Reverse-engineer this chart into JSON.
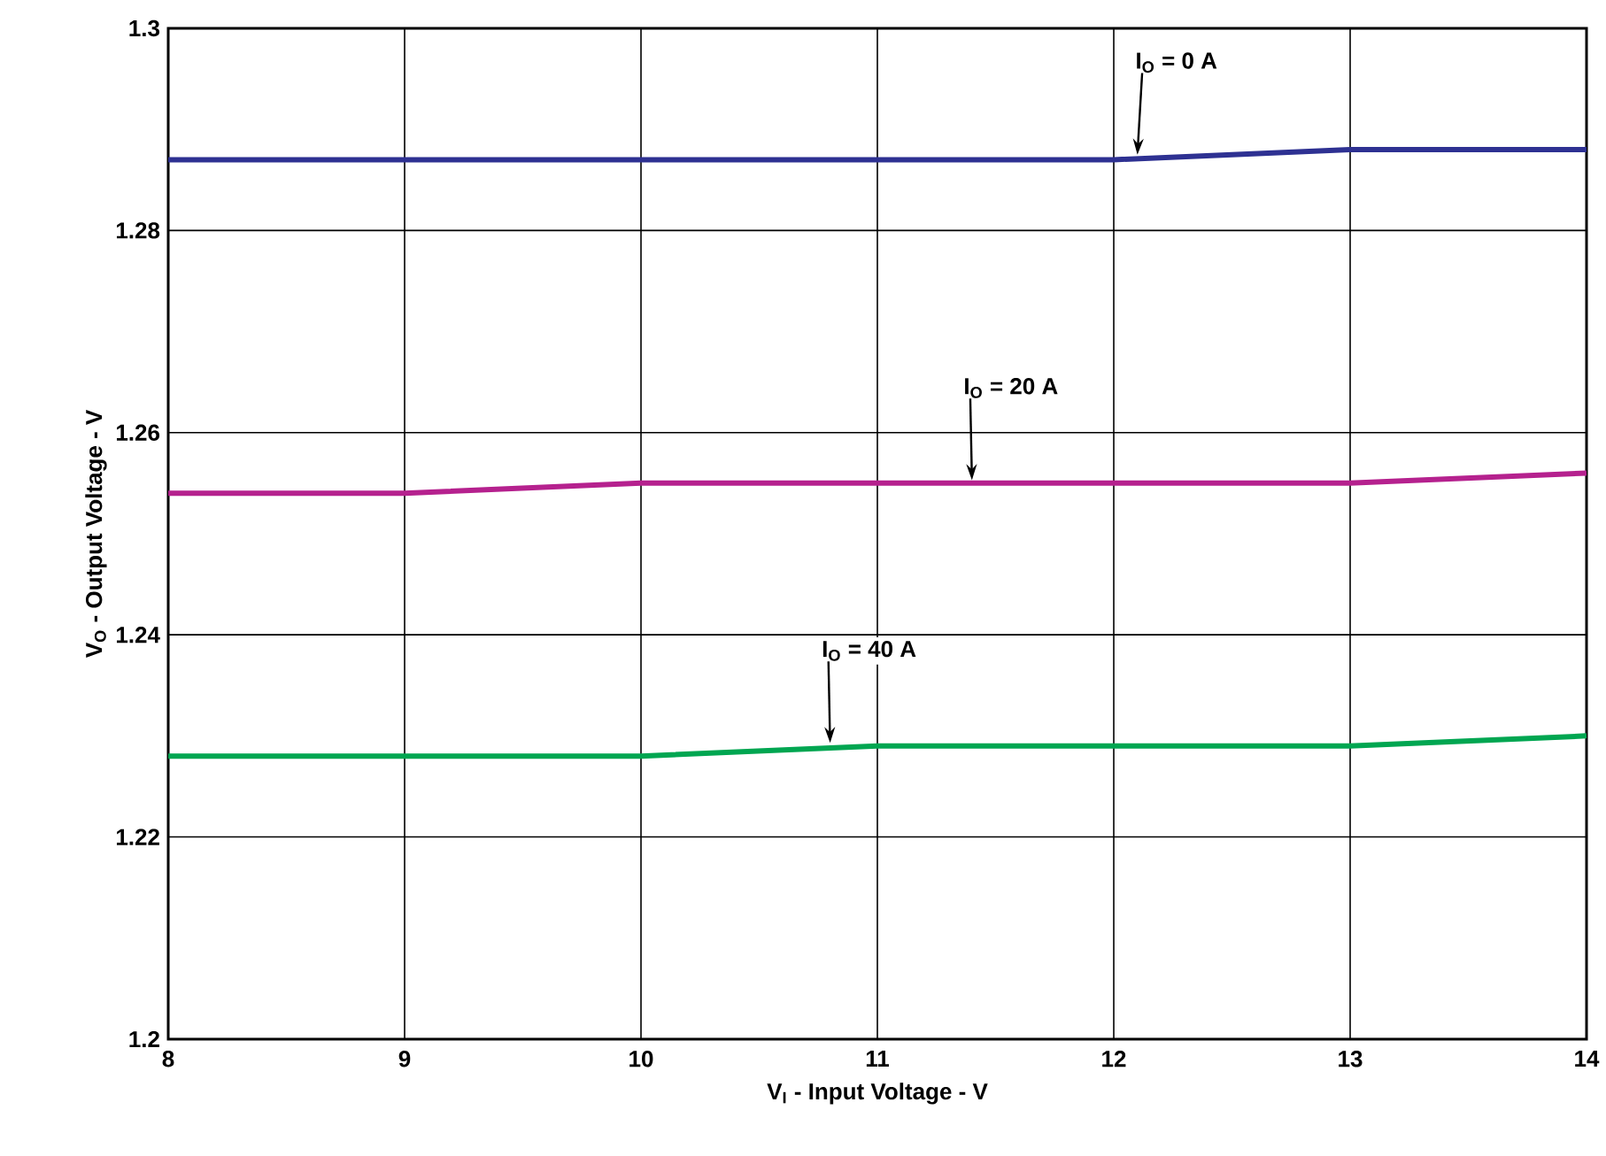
{
  "chart_data": {
    "type": "line",
    "xlabel": "V$_{I}$ - Input Voltage - V",
    "ylabel": "V$_{O}$ - Output Voltage - V",
    "x": [
      8,
      9,
      10,
      11,
      12,
      13,
      14
    ],
    "series": [
      {
        "color": "#2e3192",
        "values": [
          1.287,
          1.287,
          1.287,
          1.287,
          1.287,
          1.288,
          1.288
        ]
      },
      {
        "color": "#b5218e",
        "values": [
          1.254,
          1.254,
          1.255,
          1.255,
          1.255,
          1.255,
          1.256
        ]
      },
      {
        "color": "#00a651",
        "values": [
          1.228,
          1.228,
          1.228,
          1.229,
          1.229,
          1.229,
          1.23
        ]
      }
    ],
    "xlim": [
      8,
      14
    ],
    "ylim": [
      1.2,
      1.3
    ],
    "xticks": [
      8,
      9,
      10,
      11,
      12,
      13,
      14
    ],
    "yticks": [
      1.2,
      1.22,
      1.24,
      1.26,
      1.28,
      1.3
    ],
    "grid": true,
    "marker": "none",
    "line_style": "solid",
    "annotations": [
      {
        "text": "I$_{O}$ = 0 A",
        "x": 12.1,
        "y": 1.2875
      },
      {
        "text": "I$_{O}$ = 20 A",
        "x": 11.4,
        "y": 1.2553
      },
      {
        "text": "I$_{O}$ = 40 A",
        "x": 10.8,
        "y": 1.2293
      }
    ]
  }
}
